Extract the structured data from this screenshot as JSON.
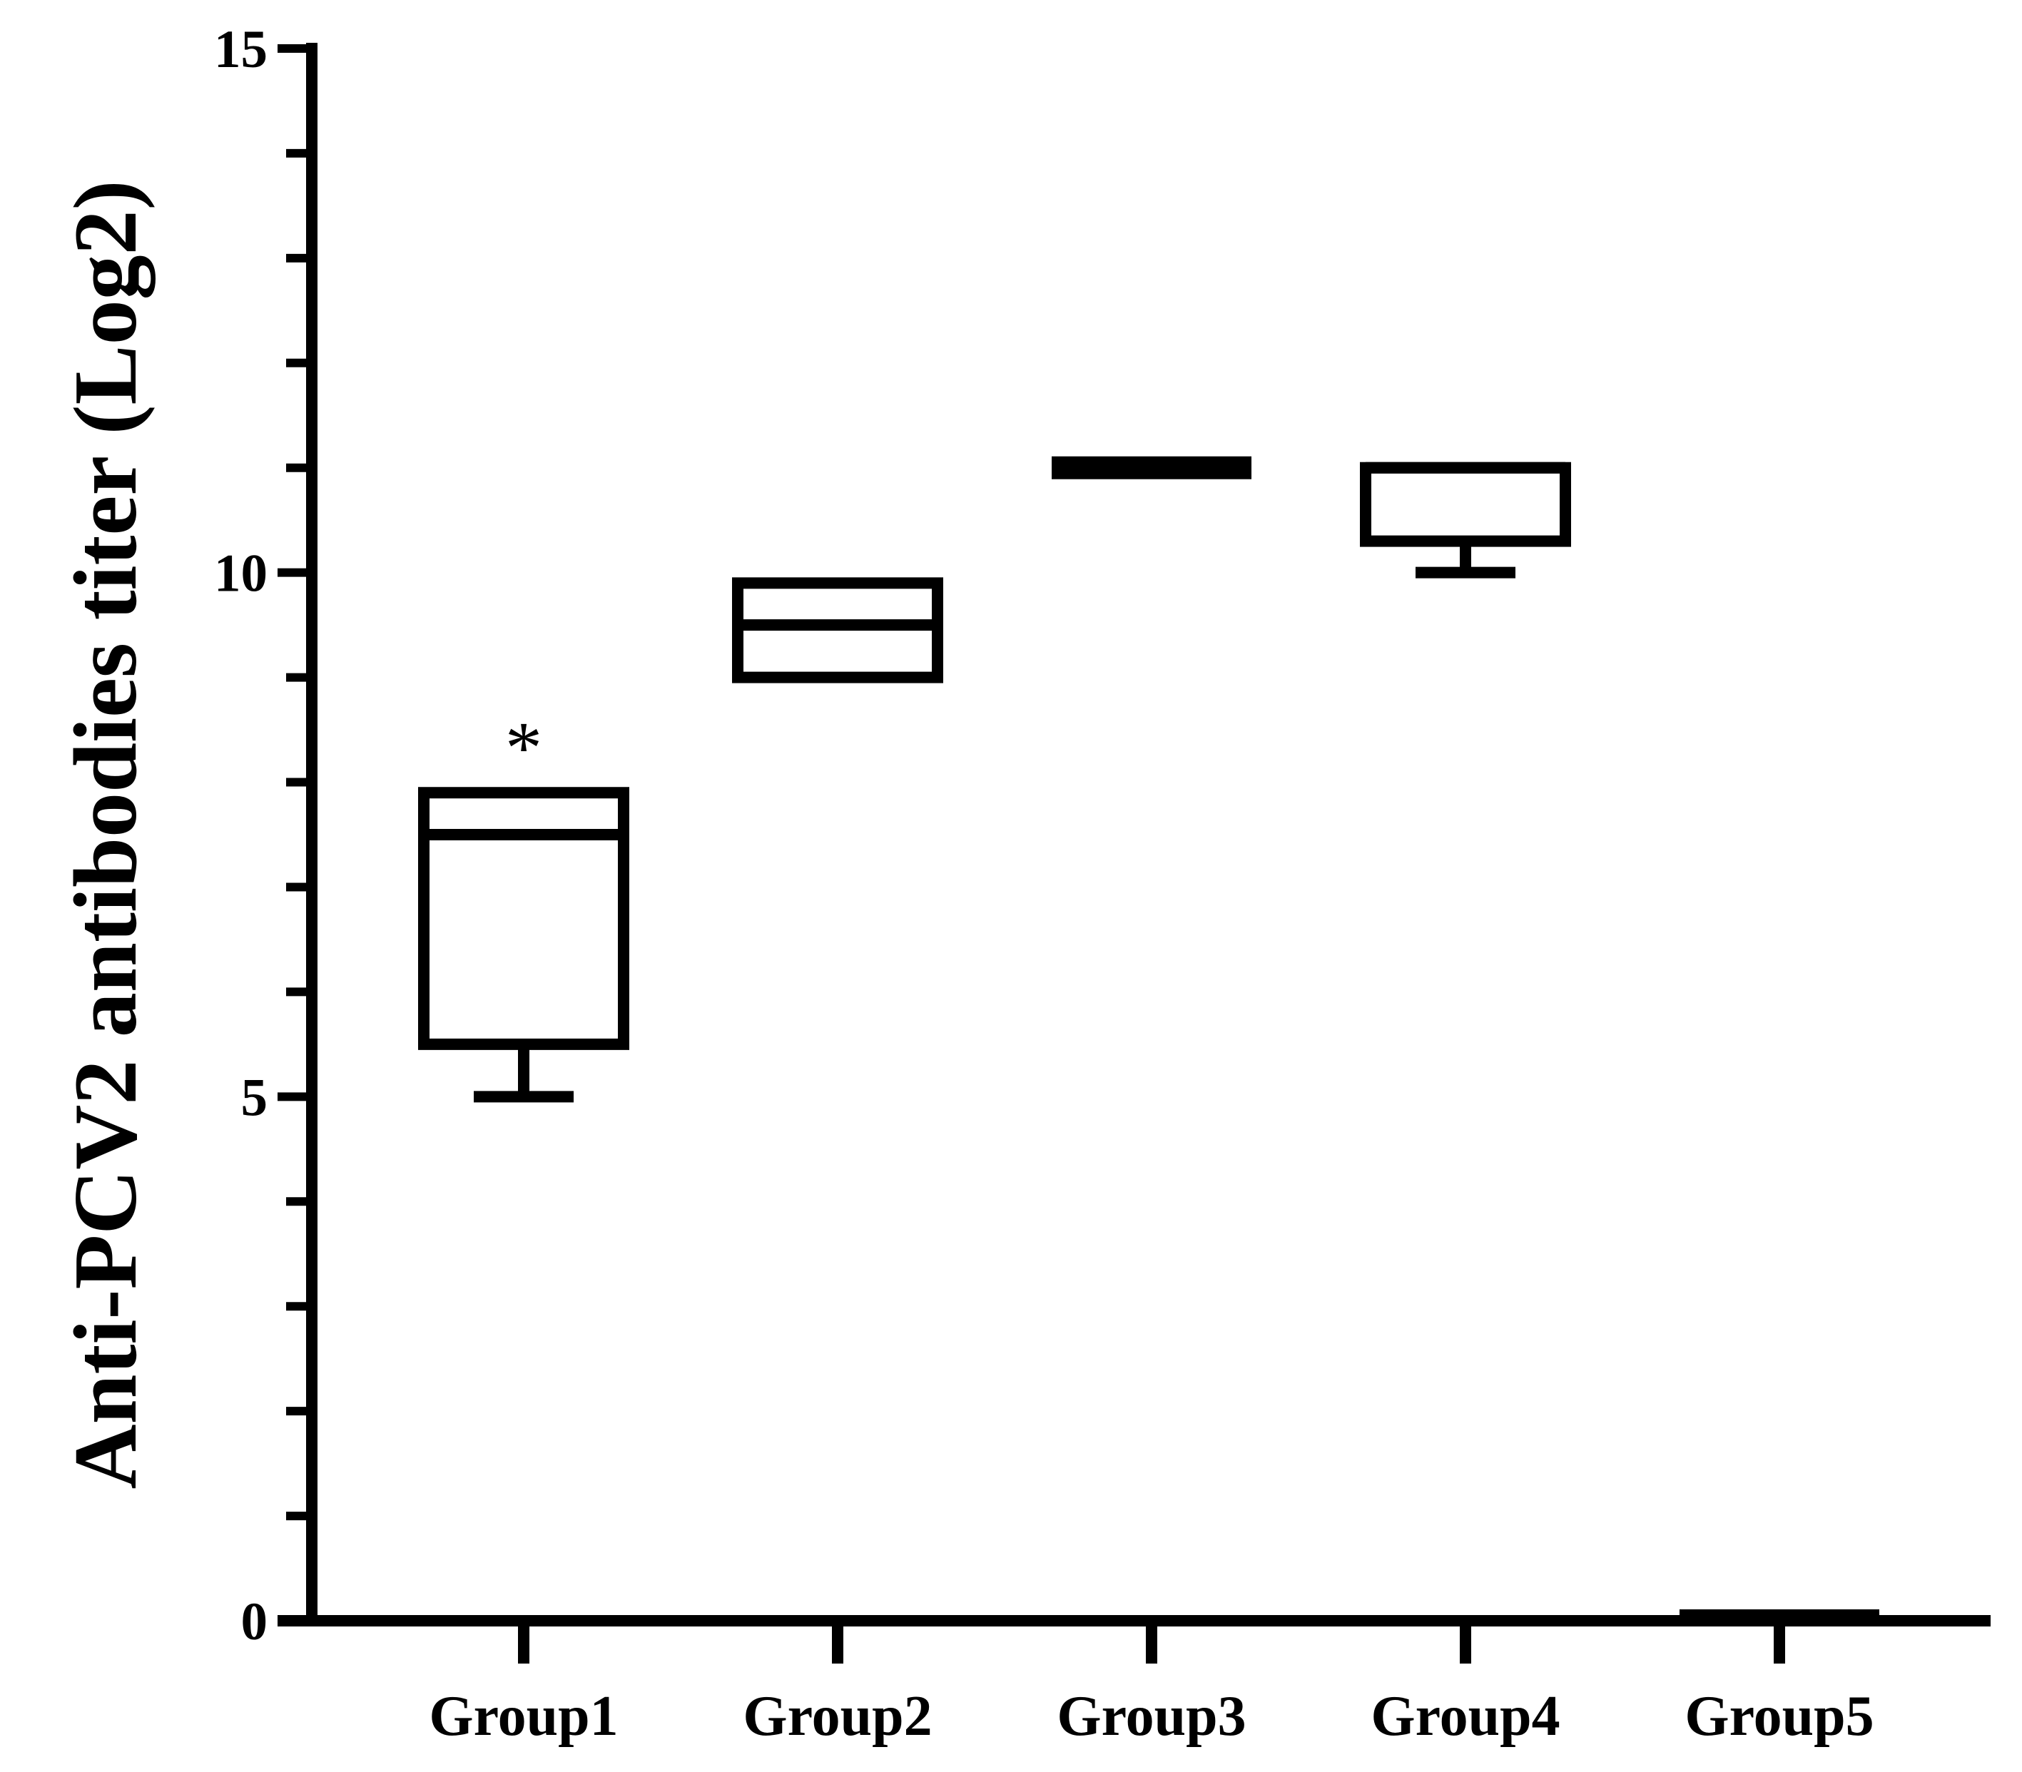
{
  "chart_data": {
    "type": "box",
    "title": "",
    "xlabel": "",
    "ylabel": "Anti-PCV2 antibodies titer (Log2)",
    "ylim": [
      0,
      15
    ],
    "yticks_major": [
      0,
      5,
      10,
      15
    ],
    "yticks_minor_step": 1,
    "grid": false,
    "legend": "none",
    "categories": [
      "Group1",
      "Group2",
      "Group3",
      "Group4",
      "Group5"
    ],
    "boxes": [
      {
        "category": "Group1",
        "min": 5,
        "q1": 5.5,
        "median": 7.5,
        "q3": 7.9,
        "max": 7.9
      },
      {
        "category": "Group2",
        "min": 9,
        "q1": 9,
        "median": 9.5,
        "q3": 9.9,
        "max": 9.9
      },
      {
        "category": "Group3",
        "min": 11,
        "q1": 11,
        "median": 11,
        "q3": 11,
        "max": 11
      },
      {
        "category": "Group4",
        "min": 10,
        "q1": 10.3,
        "median": 11,
        "q3": 11,
        "max": 11
      },
      {
        "category": "Group5",
        "min": 0,
        "q1": 0,
        "median": 0,
        "q3": 0,
        "max": 0
      }
    ],
    "annotations": [
      {
        "category": "Group1",
        "text": "*"
      }
    ],
    "colors": {
      "stroke": "#000000",
      "background": "#ffffff"
    }
  }
}
